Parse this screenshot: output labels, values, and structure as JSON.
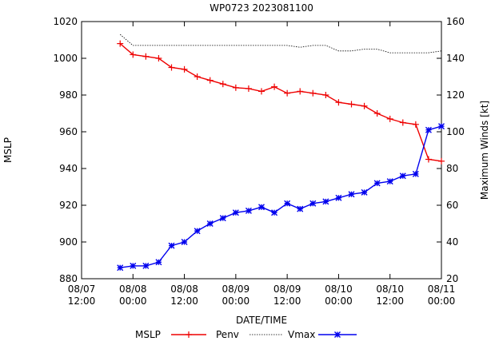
{
  "chart_data": {
    "type": "line",
    "title": "WP0723 2023081100",
    "xlabel": "DATE/TIME",
    "ylabel_left": "MSLP",
    "ylabel_right": "Maximum Winds [kt]",
    "x_ticks": [
      [
        "08/07",
        "12:00"
      ],
      [
        "08/08",
        "00:00"
      ],
      [
        "08/08",
        "12:00"
      ],
      [
        "08/09",
        "00:00"
      ],
      [
        "08/09",
        "12:00"
      ],
      [
        "08/10",
        "00:00"
      ],
      [
        "08/10",
        "12:00"
      ],
      [
        "08/11",
        "00:00"
      ]
    ],
    "x_hours_start": "08/07 12:00",
    "xlim": [
      0,
      84
    ],
    "y_left_lim": [
      880,
      1020
    ],
    "y_left_ticks": [
      880,
      900,
      920,
      940,
      960,
      980,
      1000,
      1020
    ],
    "y_right_lim": [
      20,
      160
    ],
    "y_right_ticks": [
      20,
      40,
      60,
      80,
      100,
      120,
      140,
      160
    ],
    "x": [
      9,
      12,
      15,
      18,
      21,
      24,
      27,
      30,
      33,
      36,
      39,
      42,
      45,
      48,
      51,
      54,
      57,
      60,
      63,
      66,
      69,
      72,
      75,
      78,
      81,
      84
    ],
    "legend_labels": [
      "MSLP",
      "Penv",
      "Vmax"
    ],
    "series": [
      {
        "name": "MSLP",
        "axis": "left",
        "color": "#ee0000",
        "marker": "plus",
        "values": [
          1008,
          1002,
          1001,
          1000,
          995,
          994,
          990,
          988,
          986,
          984,
          983.5,
          982,
          984.5,
          981,
          982,
          981,
          980,
          976,
          975,
          974,
          970,
          967,
          965,
          964,
          945,
          944
        ]
      },
      {
        "name": "Penv",
        "axis": "left",
        "color": "#000000",
        "marker": "none",
        "dashed": true,
        "x": [
          9,
          12,
          15,
          18,
          21,
          24,
          27,
          30,
          33,
          36,
          39,
          42,
          45,
          48,
          51,
          54,
          57,
          60,
          63,
          66,
          69,
          72,
          75,
          78,
          81,
          84
        ],
        "values": [
          1013,
          1007,
          1007,
          1007,
          1007,
          1007,
          1007,
          1007,
          1007,
          1007,
          1007,
          1007,
          1007,
          1007,
          1006,
          1007,
          1007,
          1004,
          1004,
          1005,
          1005,
          1003,
          1003,
          1003,
          1003,
          1004
        ]
      },
      {
        "name": "Vmax",
        "axis": "right",
        "color": "#0000ee",
        "marker": "star",
        "values": [
          26,
          27,
          27,
          29,
          38,
          40,
          46,
          50,
          53,
          56,
          57,
          59,
          56,
          61,
          58,
          61,
          62,
          64,
          66,
          67,
          72,
          73,
          76,
          77,
          101,
          103
        ]
      }
    ]
  }
}
